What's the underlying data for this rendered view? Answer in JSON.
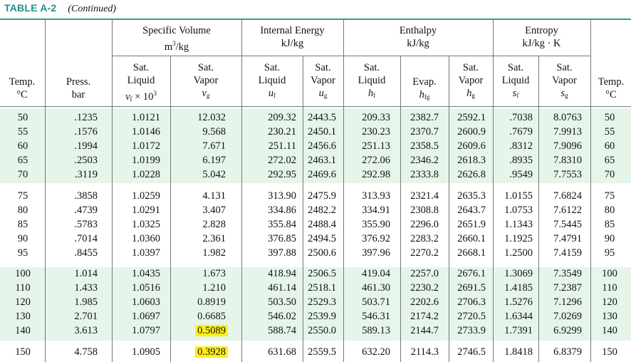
{
  "table_label": "TABLE A-2",
  "continued": "(Continued)",
  "groups": [
    {
      "label": "Specific Volume",
      "unit": "m³/kg"
    },
    {
      "label": "Internal Energy",
      "unit": "kJ/kg"
    },
    {
      "label": "Enthalpy",
      "unit": "kJ/kg"
    },
    {
      "label": "Entropy",
      "unit": "kJ/kg · K"
    }
  ],
  "headers": {
    "temp_left": [
      "Temp.",
      "°C"
    ],
    "press": [
      "Press.",
      "bar"
    ],
    "vf": [
      "Sat.",
      "Liquid",
      "vf × 10³"
    ],
    "vg": [
      "Sat.",
      "Vapor",
      "vg"
    ],
    "uf": [
      "Sat.",
      "Liquid",
      "uf"
    ],
    "ug": [
      "Sat.",
      "Vapor",
      "ug"
    ],
    "hf": [
      "Sat.",
      "Liquid",
      "hf"
    ],
    "hfg": [
      "Evap.",
      "hfg"
    ],
    "hg": [
      "Sat.",
      "Vapor",
      "hg"
    ],
    "sf": [
      "Sat.",
      "Liquid",
      "sf"
    ],
    "sg": [
      "Sat.",
      "Vapor",
      "sg"
    ],
    "temp_right": [
      "Temp.",
      "°C"
    ]
  },
  "rows": [
    [
      "50",
      ".1235",
      "1.0121",
      "12.032",
      "209.32",
      "2443.5",
      "209.33",
      "2382.7",
      "2592.1",
      ".7038",
      "8.0763",
      "50"
    ],
    [
      "55",
      ".1576",
      "1.0146",
      "9.568",
      "230.21",
      "2450.1",
      "230.23",
      "2370.7",
      "2600.9",
      ".7679",
      "7.9913",
      "55"
    ],
    [
      "60",
      ".1994",
      "1.0172",
      "7.671",
      "251.11",
      "2456.6",
      "251.13",
      "2358.5",
      "2609.6",
      ".8312",
      "7.9096",
      "60"
    ],
    [
      "65",
      ".2503",
      "1.0199",
      "6.197",
      "272.02",
      "2463.1",
      "272.06",
      "2346.2",
      "2618.3",
      ".8935",
      "7.8310",
      "65"
    ],
    [
      "70",
      ".3119",
      "1.0228",
      "5.042",
      "292.95",
      "2469.6",
      "292.98",
      "2333.8",
      "2626.8",
      ".9549",
      "7.7553",
      "70"
    ],
    [
      "75",
      ".3858",
      "1.0259",
      "4.131",
      "313.90",
      "2475.9",
      "313.93",
      "2321.4",
      "2635.3",
      "1.0155",
      "7.6824",
      "75"
    ],
    [
      "80",
      ".4739",
      "1.0291",
      "3.407",
      "334.86",
      "2482.2",
      "334.91",
      "2308.8",
      "2643.7",
      "1.0753",
      "7.6122",
      "80"
    ],
    [
      "85",
      ".5783",
      "1.0325",
      "2.828",
      "355.84",
      "2488.4",
      "355.90",
      "2296.0",
      "2651.9",
      "1.1343",
      "7.5445",
      "85"
    ],
    [
      "90",
      ".7014",
      "1.0360",
      "2.361",
      "376.85",
      "2494.5",
      "376.92",
      "2283.2",
      "2660.1",
      "1.1925",
      "7.4791",
      "90"
    ],
    [
      "95",
      ".8455",
      "1.0397",
      "1.982",
      "397.88",
      "2500.6",
      "397.96",
      "2270.2",
      "2668.1",
      "1.2500",
      "7.4159",
      "95"
    ],
    [
      "100",
      "1.014",
      "1.0435",
      "1.673",
      "418.94",
      "2506.5",
      "419.04",
      "2257.0",
      "2676.1",
      "1.3069",
      "7.3549",
      "100"
    ],
    [
      "110",
      "1.433",
      "1.0516",
      "1.210",
      "461.14",
      "2518.1",
      "461.30",
      "2230.2",
      "2691.5",
      "1.4185",
      "7.2387",
      "110"
    ],
    [
      "120",
      "1.985",
      "1.0603",
      "0.8919",
      "503.50",
      "2529.3",
      "503.71",
      "2202.6",
      "2706.3",
      "1.5276",
      "7.1296",
      "120"
    ],
    [
      "130",
      "2.701",
      "1.0697",
      "0.6685",
      "546.02",
      "2539.9",
      "546.31",
      "2174.2",
      "2720.5",
      "1.6344",
      "7.0269",
      "130"
    ],
    [
      "140",
      "3.613",
      "1.0797",
      "0.5089",
      "588.74",
      "2550.0",
      "589.13",
      "2144.7",
      "2733.9",
      "1.7391",
      "6.9299",
      "140"
    ],
    [
      "150",
      "4.758",
      "1.0905",
      "0.3928",
      "631.68",
      "2559.5",
      "632.20",
      "2114.3",
      "2746.5",
      "1.8418",
      "6.8379",
      "150"
    ]
  ],
  "highlighted": [
    [
      14,
      3
    ],
    [
      15,
      3
    ]
  ],
  "colors": {
    "title": "#1f8f8f",
    "band": "#e6f5ea",
    "highlight": "#ffef1a",
    "rule": "#2a9d8f"
  }
}
